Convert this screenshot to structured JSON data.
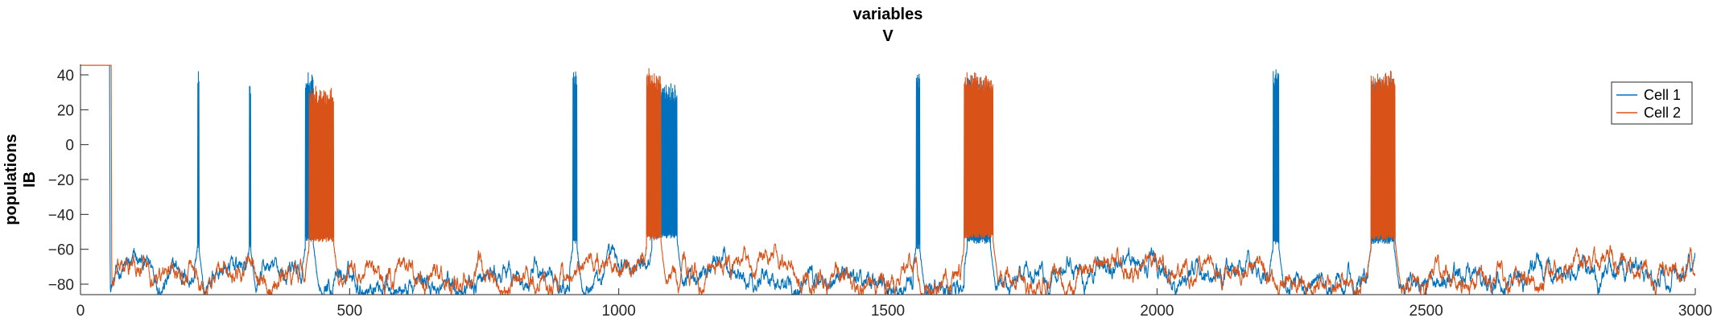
{
  "chart_data": {
    "type": "line",
    "title_lines": [
      "variables",
      "V"
    ],
    "ylabel_lines": [
      "populations",
      "IB"
    ],
    "xlabel": "",
    "xlim": [
      0,
      3000
    ],
    "ylim": [
      -86,
      46
    ],
    "x_ticks": [
      0,
      500,
      1000,
      1500,
      2000,
      2500,
      3000
    ],
    "y_ticks": [
      -80,
      -60,
      -40,
      -20,
      0,
      20,
      40
    ],
    "grid": false,
    "legend_position": "top-right",
    "series": [
      {
        "name": "Cell 1",
        "color": "#0072BD",
        "onset": 55,
        "bursts": [
          {
            "start": 218,
            "end": 220,
            "min": -60,
            "max": 45
          },
          {
            "start": 314,
            "end": 316,
            "min": -60,
            "max": 41
          },
          {
            "start": 418,
            "end": 432,
            "min": -56,
            "max": 42
          },
          {
            "start": 915,
            "end": 922,
            "min": -58,
            "max": 45
          },
          {
            "start": 1062,
            "end": 1108,
            "min": -54,
            "max": 36
          },
          {
            "start": 1553,
            "end": 1559,
            "min": -60,
            "max": 45
          },
          {
            "start": 1648,
            "end": 1690,
            "min": -57,
            "max": 40
          },
          {
            "start": 2216,
            "end": 2226,
            "min": -58,
            "max": 45
          },
          {
            "start": 2398,
            "end": 2440,
            "min": -57,
            "max": 40
          }
        ]
      },
      {
        "name": "Cell 2",
        "color": "#D95319",
        "onset": 58,
        "bursts": [
          {
            "start": 425,
            "end": 470,
            "min": -56,
            "max": 34
          },
          {
            "start": 1052,
            "end": 1078,
            "min": -55,
            "max": 45
          },
          {
            "start": 1642,
            "end": 1695,
            "min": -54,
            "max": 44
          },
          {
            "start": 2398,
            "end": 2442,
            "min": -55,
            "max": 44
          }
        ]
      }
    ]
  }
}
